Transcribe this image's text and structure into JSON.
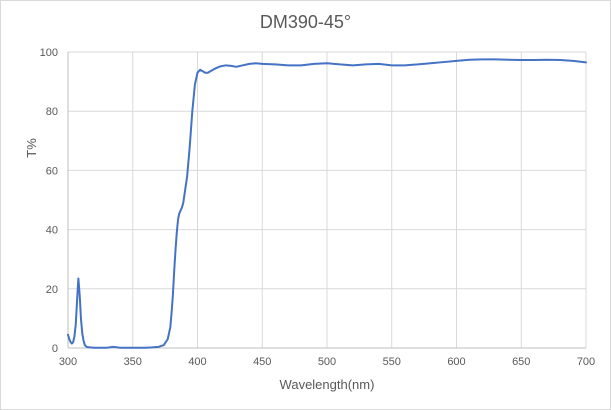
{
  "chart_data": {
    "type": "line",
    "title": "DM390-45°",
    "xlabel": "Wavelength(nm)",
    "ylabel": "T%",
    "xlim": [
      300,
      700
    ],
    "ylim": [
      0,
      100
    ],
    "xticks": [
      300,
      350,
      400,
      450,
      500,
      550,
      600,
      650,
      700
    ],
    "yticks": [
      0,
      20,
      40,
      60,
      80,
      100
    ],
    "grid": "vertical and horizontal",
    "series": [
      {
        "color": "#4472c4",
        "x": [
          300,
          301,
          302,
          303,
          304,
          305,
          306,
          307,
          308,
          309,
          310,
          311,
          312,
          313,
          314,
          315,
          317,
          320,
          325,
          330,
          335,
          340,
          345,
          350,
          355,
          360,
          365,
          370,
          374,
          377,
          379,
          380,
          381,
          382,
          383,
          384,
          385,
          386,
          387,
          388,
          389,
          390,
          392,
          394,
          396,
          398,
          400,
          402,
          404,
          406,
          408,
          410,
          412,
          414,
          418,
          422,
          426,
          430,
          435,
          440,
          445,
          450,
          460,
          470,
          480,
          490,
          500,
          510,
          520,
          530,
          540,
          550,
          560,
          570,
          580,
          590,
          600,
          610,
          620,
          630,
          640,
          650,
          660,
          670,
          680,
          690,
          700
        ],
        "y": [
          4.5,
          3,
          2,
          1.5,
          2,
          4,
          8,
          16,
          23.5,
          18,
          10,
          5,
          2.5,
          1,
          0.5,
          0.3,
          0.2,
          0.1,
          0.1,
          0.1,
          0.4,
          0.1,
          0.1,
          0.1,
          0.1,
          0.1,
          0.2,
          0.4,
          1,
          3,
          7,
          12,
          18,
          26,
          33,
          39,
          43.5,
          45.5,
          46.5,
          47.5,
          49,
          52,
          58,
          68,
          80,
          89,
          93,
          94,
          93.5,
          93,
          93,
          93.5,
          94,
          94.5,
          95.2,
          95.5,
          95.3,
          95,
          95.5,
          96,
          96.2,
          96,
          95.8,
          95.5,
          95.5,
          96,
          96.2,
          95.8,
          95.5,
          95.8,
          96,
          95.5,
          95.5,
          95.8,
          96.2,
          96.6,
          97,
          97.4,
          97.5,
          97.5,
          97.4,
          97.3,
          97.3,
          97.4,
          97.3,
          97,
          96.5
        ]
      }
    ]
  }
}
